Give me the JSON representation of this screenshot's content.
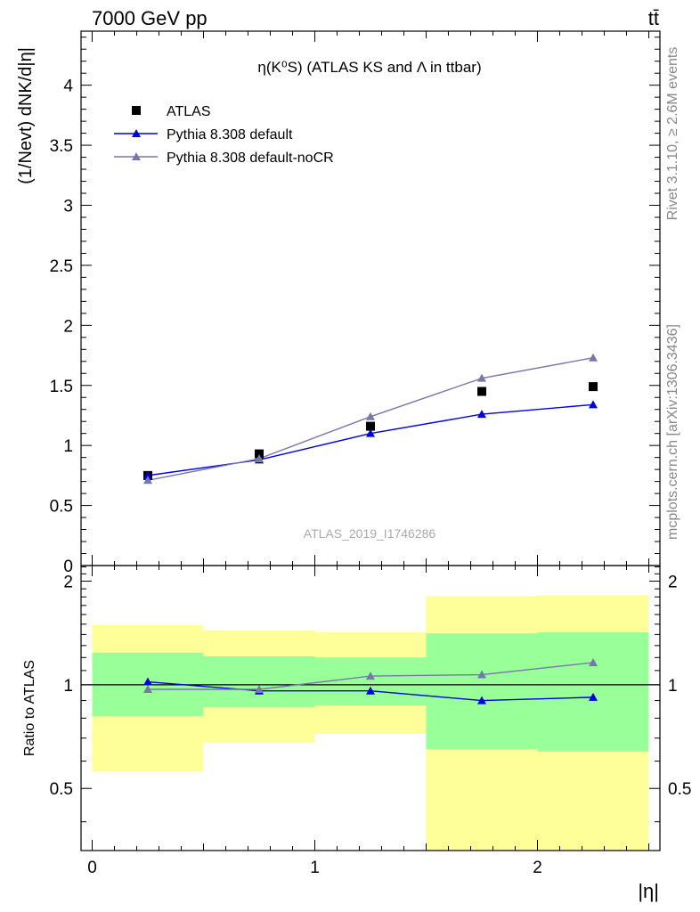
{
  "header": {
    "left": "7000 GeV pp",
    "right": "tt̄"
  },
  "side_labels": {
    "upper": "Rivet 3.1.10, ≥ 2.6M events",
    "lower": "mcplots.cern.ch [arXiv:1306.3436]"
  },
  "watermark": "ATLAS_2019_I1746286",
  "chart_data": [
    {
      "type": "scatter",
      "title": "η(K⁰S) (ATLAS KS and Λ in ttbar)",
      "xlabel": "|η|",
      "ylabel": "(1/Nevt) dNK/d|η|",
      "xlim": [
        -0.05,
        2.55
      ],
      "ylim": [
        0,
        4.45
      ],
      "yticks": [
        0,
        0.5,
        1,
        1.5,
        2,
        2.5,
        3,
        3.5,
        4
      ],
      "ytick_labels": [
        "0",
        "0.5",
        "1",
        "1.5",
        "2",
        "2.5",
        "3",
        "3.5",
        "4"
      ],
      "legend_position": "top-left",
      "x": [
        0.25,
        0.75,
        1.25,
        1.75,
        2.25
      ],
      "series": [
        {
          "name": "ATLAS",
          "marker": "square",
          "color": "#000000",
          "values": [
            0.75,
            0.93,
            1.16,
            1.45,
            1.49
          ]
        },
        {
          "name": "Pythia 8.308 default",
          "marker": "triangle",
          "color": "#0000dd",
          "values": [
            0.75,
            0.88,
            1.1,
            1.26,
            1.34
          ]
        },
        {
          "name": "Pythia 8.308 default-noCR",
          "marker": "triangle",
          "color": "#7777aa",
          "values": [
            0.71,
            0.89,
            1.24,
            1.56,
            1.73
          ]
        }
      ]
    },
    {
      "type": "line",
      "ylabel": "Ratio to ATLAS",
      "xlabel": "|η|",
      "xlim": [
        -0.05,
        2.55
      ],
      "ylim": [
        0.33,
        2.22
      ],
      "yticks": [
        0.5,
        1,
        2
      ],
      "ytick_labels": [
        "0.5",
        "1",
        "2"
      ],
      "xticks": [
        0,
        1,
        2
      ],
      "xtick_labels": [
        "0",
        "1",
        "2"
      ],
      "x": [
        0.25,
        0.75,
        1.25,
        1.75,
        2.25
      ],
      "bins": [
        [
          0,
          0.5
        ],
        [
          0.5,
          1
        ],
        [
          1,
          1.5
        ],
        [
          1.5,
          2
        ],
        [
          2,
          2.5
        ]
      ],
      "band_inner": {
        "color": "#99ff99",
        "low": [
          0.81,
          0.86,
          0.87,
          0.65,
          0.64
        ],
        "high": [
          1.24,
          1.21,
          1.2,
          1.41,
          1.42
        ]
      },
      "band_outer": {
        "color": "#ffff99",
        "low": [
          0.56,
          0.68,
          0.72,
          0.33,
          0.33
        ],
        "high": [
          1.49,
          1.44,
          1.42,
          1.81,
          1.82
        ]
      },
      "series": [
        {
          "name": "Pythia 8.308 default",
          "color": "#0000dd",
          "values": [
            1.02,
            0.96,
            0.96,
            0.9,
            0.92
          ]
        },
        {
          "name": "Pythia 8.308 default-noCR",
          "color": "#7777aa",
          "values": [
            0.97,
            0.97,
            1.06,
            1.07,
            1.16
          ]
        }
      ]
    }
  ]
}
